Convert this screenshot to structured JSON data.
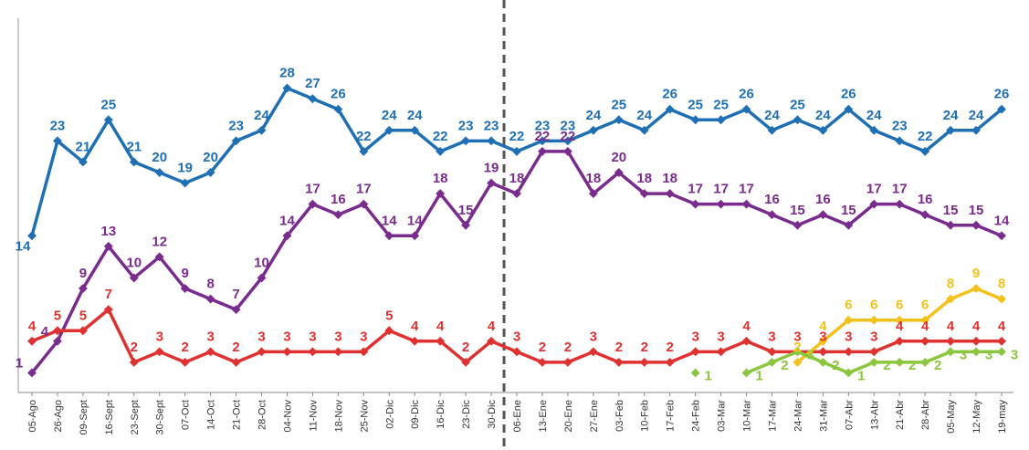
{
  "chart_data": {
    "type": "line",
    "title": "",
    "xlabel": "",
    "ylabel": "",
    "ylim": [
      0,
      30
    ],
    "grid": false,
    "legend": "none",
    "categories": [
      "05-Ago",
      "26-Ago",
      "09-Sept",
      "16-Sept",
      "23-Sept",
      "30-Sept",
      "07-Oct",
      "14-Oct",
      "21-Oct",
      "28-Oct",
      "04-Nov",
      "11-Nov",
      "18-Nov",
      "25-Nov",
      "02-Dic",
      "09-Dic",
      "16-Dic",
      "23-Dic",
      "30-Dic",
      "06-Ene",
      "13-Ene",
      "20-Ene",
      "27-Ene",
      "03-Feb",
      "10-Feb",
      "17-Feb",
      "24-Feb",
      "03-Mar",
      "10-Mar",
      "17-Mar",
      "24-Mar",
      "31-Mar",
      "07-Abr",
      "13-Abr",
      "21-Abr",
      "28-Abr",
      "05-May",
      "12-May",
      "19-may"
    ],
    "divider_after_category": "30-Dic",
    "series": [
      {
        "color": "#1f6fb5",
        "values": [
          14,
          23,
          21,
          25,
          21,
          20,
          19,
          20,
          23,
          24,
          28,
          27,
          26,
          22,
          24,
          24,
          22,
          23,
          23,
          22,
          23,
          23,
          24,
          25,
          24,
          26,
          25,
          25,
          26,
          24,
          25,
          24,
          26,
          24,
          23,
          22,
          24,
          24,
          26
        ]
      },
      {
        "color": "#7a2c8e",
        "values": [
          1,
          4,
          9,
          13,
          10,
          12,
          9,
          8,
          7,
          10,
          14,
          17,
          16,
          17,
          14,
          14,
          18,
          15,
          19,
          18,
          22,
          22,
          18,
          20,
          18,
          18,
          17,
          17,
          17,
          16,
          15,
          16,
          15,
          17,
          17,
          16,
          15,
          15,
          14
        ]
      },
      {
        "color": "#e03131",
        "values": [
          4,
          5,
          5,
          7,
          2,
          3,
          2,
          3,
          2,
          3,
          3,
          3,
          3,
          3,
          5,
          4,
          4,
          2,
          4,
          3,
          2,
          2,
          3,
          2,
          2,
          2,
          3,
          3,
          4,
          3,
          3,
          3,
          3,
          3,
          4,
          4,
          4,
          4,
          4
        ]
      },
      {
        "color": "#f2c21b",
        "values": [
          null,
          null,
          null,
          null,
          null,
          null,
          null,
          null,
          null,
          null,
          null,
          null,
          null,
          null,
          null,
          null,
          null,
          null,
          null,
          null,
          null,
          null,
          null,
          null,
          null,
          null,
          null,
          null,
          null,
          null,
          2,
          4,
          6,
          6,
          6,
          6,
          8,
          9,
          8
        ]
      },
      {
        "color": "#8cc63f",
        "values": [
          null,
          null,
          null,
          null,
          null,
          null,
          null,
          null,
          null,
          null,
          null,
          null,
          null,
          null,
          null,
          null,
          null,
          null,
          null,
          null,
          null,
          null,
          null,
          null,
          null,
          null,
          1,
          null,
          1,
          2,
          3,
          2,
          1,
          2,
          2,
          2,
          3,
          3,
          3
        ]
      }
    ]
  }
}
